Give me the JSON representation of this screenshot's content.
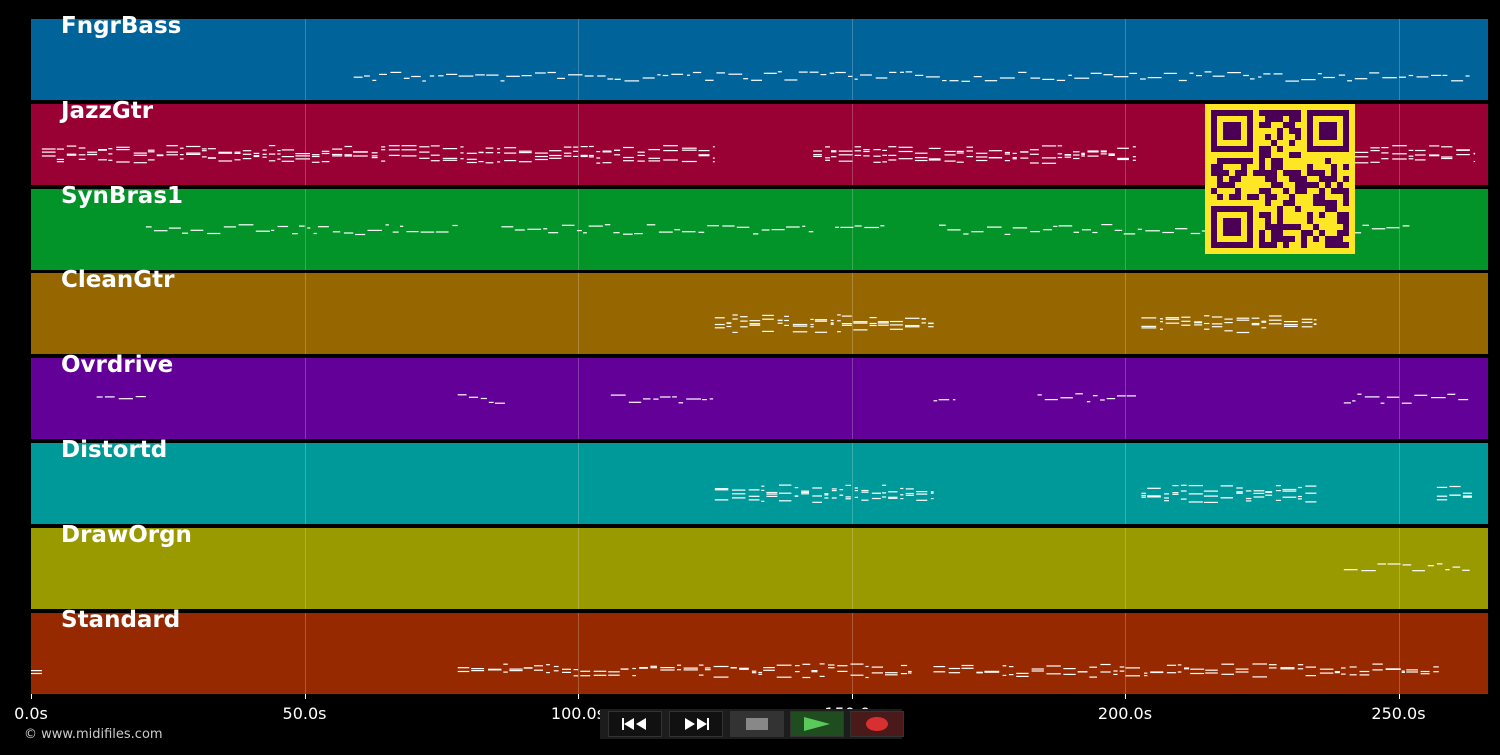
{
  "tracks": [
    {
      "label": "FngrBass",
      "color": "#00649a"
    },
    {
      "label": "JazzGtr",
      "color": "#990033"
    },
    {
      "label": "SynBras1",
      "color": "#029428"
    },
    {
      "label": "CleanGtr",
      "color": "#966600"
    },
    {
      "label": "Ovrdrive",
      "color": "#630098"
    },
    {
      "label": "Distortd",
      "color": "#009999"
    },
    {
      "label": "DrawOrgn",
      "color": "#999900"
    },
    {
      "label": "Standard",
      "color": "#962900"
    }
  ],
  "timeline": {
    "max_seconds": 266,
    "ticks": [
      {
        "value": 0,
        "label": "0.0s"
      },
      {
        "value": 50,
        "label": "50.0s"
      },
      {
        "value": 100,
        "label": "100.0s"
      },
      {
        "value": 150,
        "label": "150.0s"
      },
      {
        "value": 200,
        "label": "200.0s"
      },
      {
        "value": 250,
        "label": "250.0s"
      }
    ]
  },
  "credit": "© www.midifiles.com",
  "controls": [
    {
      "name": "rewind-button",
      "icon": "rewind-icon"
    },
    {
      "name": "fast-forward-button",
      "icon": "fast-forward-icon"
    },
    {
      "name": "stop-button",
      "icon": "stop-icon"
    },
    {
      "name": "play-button",
      "icon": "play-icon"
    },
    {
      "name": "record-button",
      "icon": "record-icon"
    }
  ],
  "colors": {
    "qr_fg": "#4b0055",
    "qr_bg": "#fde725",
    "play": "#5bc85b",
    "record": "#d83030",
    "stop": "#888888"
  }
}
